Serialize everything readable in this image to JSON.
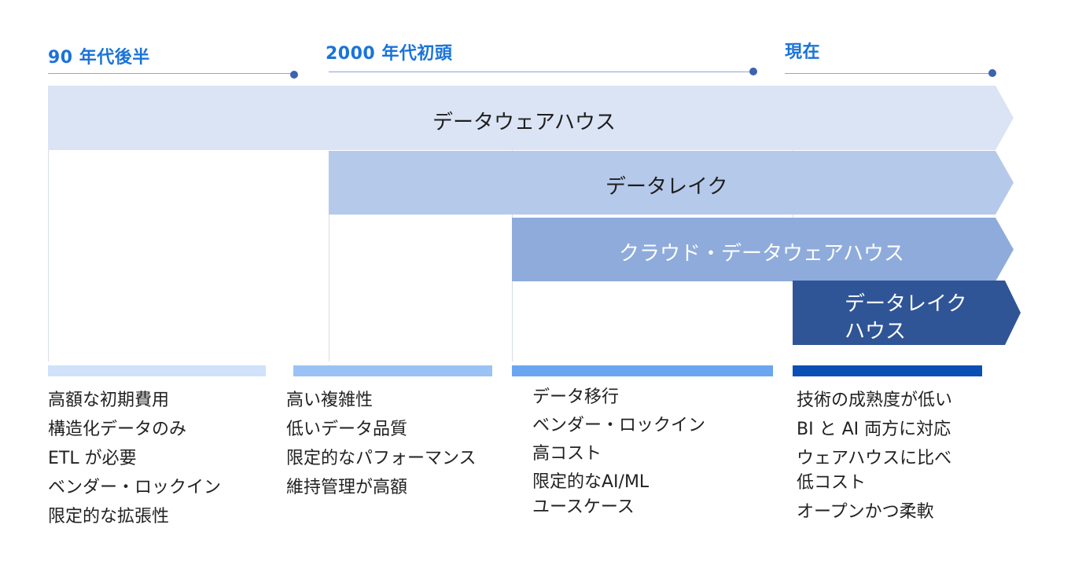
{
  "colors": {
    "era_text": "#1a73d9",
    "arrow_warehouse": "#dbe4f5",
    "arrow_lake": "#b5c9ea",
    "arrow_cloud": "#8eabdb",
    "arrow_lakehouse": "#2f5597",
    "bar_90s": "#cfe2fa",
    "bar_2000s": "#9bc2f4",
    "bar_cloud": "#6aa6f0",
    "bar_now": "#0b4fb5"
  },
  "timeline": [
    {
      "label": "90 年代後半"
    },
    {
      "label": "2000 年代初頭"
    },
    {
      "label": "現在"
    }
  ],
  "arrows": [
    {
      "label": "データウェアハウス"
    },
    {
      "label": "データレイク"
    },
    {
      "label": "クラウド・データウェアハウス"
    },
    {
      "label_line1": "データレイク",
      "label_line2": "ハウス"
    }
  ],
  "columns": [
    {
      "items": [
        "高額な初期費用",
        "構造化データのみ",
        "ETL が必要",
        "ベンダー・ロックイン",
        "限定的な拡張性"
      ]
    },
    {
      "items": [
        "高い複雑性",
        "低いデータ品質",
        "限定的なパフォーマンス",
        "維持管理が高額"
      ]
    },
    {
      "items": [
        "データ移行",
        "ベンダー・ロックイン",
        "高コスト",
        "限定的なAI/ML\nユースケース"
      ]
    },
    {
      "items": [
        "技術の成熟度が低い",
        "BI と AI 両方に対応",
        "ウェアハウスに比べ\n低コスト",
        "オープンかつ柔軟"
      ]
    }
  ]
}
